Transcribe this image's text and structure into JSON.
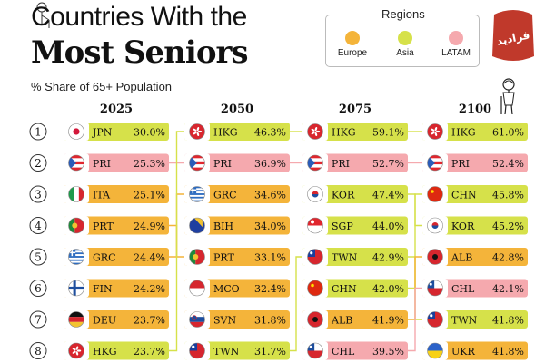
{
  "header": {
    "title_line1": "Countries With the",
    "title_line2": "Most Seniors",
    "subtitle": "% Share of 65+ Population"
  },
  "legend": {
    "title": "Regions",
    "items": [
      {
        "label": "Europe",
        "color": "#F4B43A"
      },
      {
        "label": "Asia",
        "color": "#D6E14A"
      },
      {
        "label": "LATAM",
        "color": "#F5A9AE"
      }
    ]
  },
  "logo": {
    "text": "فرادید",
    "color": "#C0392B",
    "icon": "watermark-logo"
  },
  "chart_data": {
    "type": "table",
    "ranks": [
      "1",
      "2",
      "3",
      "4",
      "5",
      "6",
      "7",
      "8"
    ],
    "columns": [
      {
        "year": "2025",
        "entries": [
          {
            "code": "JPN",
            "value": "30.0%",
            "region": "Asia"
          },
          {
            "code": "PRI",
            "value": "25.3%",
            "region": "LATAM"
          },
          {
            "code": "ITA",
            "value": "25.1%",
            "region": "Europe"
          },
          {
            "code": "PRT",
            "value": "24.9%",
            "region": "Europe"
          },
          {
            "code": "GRC",
            "value": "24.4%",
            "region": "Europe"
          },
          {
            "code": "FIN",
            "value": "24.2%",
            "region": "Europe"
          },
          {
            "code": "DEU",
            "value": "23.7%",
            "region": "Europe"
          },
          {
            "code": "HKG",
            "value": "23.7%",
            "region": "Asia"
          }
        ]
      },
      {
        "year": "2050",
        "entries": [
          {
            "code": "HKG",
            "value": "46.3%",
            "region": "Asia"
          },
          {
            "code": "PRI",
            "value": "36.9%",
            "region": "LATAM"
          },
          {
            "code": "GRC",
            "value": "34.6%",
            "region": "Europe"
          },
          {
            "code": "BIH",
            "value": "34.0%",
            "region": "Europe"
          },
          {
            "code": "PRT",
            "value": "33.1%",
            "region": "Europe"
          },
          {
            "code": "MCO",
            "value": "32.4%",
            "region": "Europe"
          },
          {
            "code": "SVN",
            "value": "31.8%",
            "region": "Europe"
          },
          {
            "code": "TWN",
            "value": "31.7%",
            "region": "Asia"
          }
        ]
      },
      {
        "year": "2075",
        "entries": [
          {
            "code": "HKG",
            "value": "59.1%",
            "region": "Asia"
          },
          {
            "code": "PRI",
            "value": "52.7%",
            "region": "LATAM"
          },
          {
            "code": "KOR",
            "value": "47.4%",
            "region": "Asia"
          },
          {
            "code": "SGP",
            "value": "44.0%",
            "region": "Asia"
          },
          {
            "code": "TWN",
            "value": "42.9%",
            "region": "Asia"
          },
          {
            "code": "CHN",
            "value": "42.0%",
            "region": "Asia"
          },
          {
            "code": "ALB",
            "value": "41.9%",
            "region": "Europe"
          },
          {
            "code": "CHL",
            "value": "39.5%",
            "region": "LATAM"
          }
        ]
      },
      {
        "year": "2100",
        "entries": [
          {
            "code": "HKG",
            "value": "61.0%",
            "region": "Asia"
          },
          {
            "code": "PRI",
            "value": "52.4%",
            "region": "LATAM"
          },
          {
            "code": "CHN",
            "value": "45.8%",
            "region": "Asia"
          },
          {
            "code": "KOR",
            "value": "45.2%",
            "region": "Asia"
          },
          {
            "code": "ALB",
            "value": "42.8%",
            "region": "Europe"
          },
          {
            "code": "CHL",
            "value": "42.1%",
            "region": "LATAM"
          },
          {
            "code": "TWN",
            "value": "41.8%",
            "region": "Asia"
          },
          {
            "code": "UKR",
            "value": "41.8%",
            "region": "Europe"
          }
        ]
      }
    ]
  }
}
